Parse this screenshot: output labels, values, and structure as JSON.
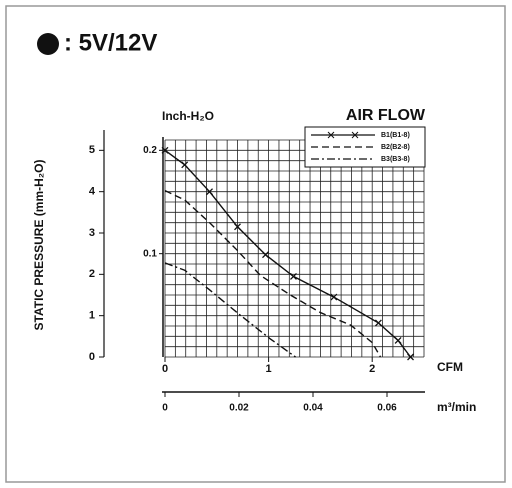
{
  "chart_data": {
    "type": "line",
    "title": ": 5V/12V",
    "header": "AIR FLOW",
    "ylabel": "Inch-H₂O",
    "y2label": "STATIC PRESSURE (mm-H₂O)",
    "xlabel": "CFM",
    "x2label": "m³/min",
    "xlim": [
      0,
      2.5
    ],
    "xticks": [
      0,
      1,
      2
    ],
    "x2lim": [
      0,
      0.07
    ],
    "x2ticks": [
      0,
      0.02,
      0.04,
      0.06
    ],
    "ylim": [
      0,
      0.21
    ],
    "yticks": [
      0.1,
      0.2
    ],
    "y2lim": [
      0,
      5.25
    ],
    "y2ticks": [
      0,
      1,
      2,
      3,
      4,
      5
    ],
    "x_grid": [
      0,
      0.1,
      0.2,
      0.3,
      0.4,
      0.5,
      0.6,
      0.7,
      0.8,
      0.9,
      1,
      1.1,
      1.2,
      1.3,
      1.4,
      1.5,
      1.6,
      1.7,
      1.8,
      1.9,
      2,
      2.1,
      2.2,
      2.3,
      2.4,
      2.5
    ],
    "y_grid": [
      0,
      0.01,
      0.02,
      0.03,
      0.04,
      0.05,
      0.06,
      0.07,
      0.08,
      0.09,
      0.1,
      0.11,
      0.12,
      0.13,
      0.14,
      0.15,
      0.16,
      0.17,
      0.18,
      0.19,
      0.2,
      0.21
    ],
    "legend": "upper right",
    "series": [
      {
        "name": "B1(B1-8)",
        "color": "#111111",
        "dash": "solid",
        "marker": "x",
        "x": [
          0,
          0.19,
          0.43,
          0.7,
          0.97,
          1.24,
          1.63,
          2.06,
          2.25,
          2.37
        ],
        "values": [
          0.2,
          0.186,
          0.16,
          0.126,
          0.099,
          0.078,
          0.058,
          0.033,
          0.016,
          0
        ]
      },
      {
        "name": "B2(B2-8)",
        "color": "#111111",
        "dash": "dashed",
        "x": [
          0,
          0.19,
          0.43,
          0.7,
          0.92,
          1.21,
          1.5,
          1.79,
          2.0,
          2.08
        ],
        "values": [
          0.161,
          0.152,
          0.13,
          0.103,
          0.079,
          0.06,
          0.043,
          0.031,
          0.014,
          0
        ]
      },
      {
        "name": "B3(B3-8)",
        "color": "#111111",
        "dash": "dashdot",
        "x": [
          0,
          0.19,
          0.43,
          0.72,
          1.01,
          1.26
        ],
        "values": [
          0.091,
          0.084,
          0.065,
          0.041,
          0.018,
          0
        ]
      }
    ]
  }
}
